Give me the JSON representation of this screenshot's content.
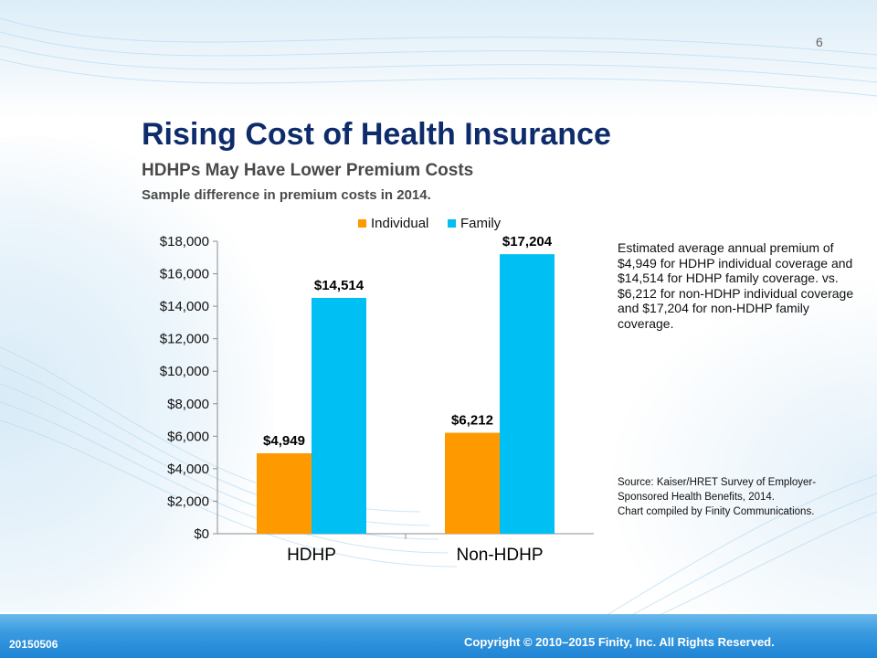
{
  "slide": {
    "page_number": "6",
    "title": "Rising Cost of Health Insurance",
    "subtitle": "HDHPs May Have Lower Premium Costs",
    "subtitle2": "Sample difference in premium costs in 2014."
  },
  "note": "Estimated average annual premium of $4,949 for HDHP individual coverage and $14,514 for HDHP family coverage. vs. $6,212 for non-HDHP individual coverage and $17,204 for non-HDHP family coverage.",
  "source": {
    "line1": "Source: Kaiser/HRET Survey of Employer-",
    "line2": "Sponsored Health Benefits, 2014.",
    "line3": "Chart compiled by Finity Communications."
  },
  "footer": {
    "code": "20150506",
    "copyright": "Copyright © 2010–2015 Finity, Inc. All Rights Reserved."
  },
  "chart_data": {
    "type": "bar",
    "categories": [
      "HDHP",
      "Non-HDHP"
    ],
    "series": [
      {
        "name": "Individual",
        "color": "#ff9900",
        "values": [
          4949,
          6212
        ],
        "labels": [
          "$4,949",
          "$6,212"
        ]
      },
      {
        "name": "Family",
        "color": "#00c0f3",
        "values": [
          14514,
          17204
        ],
        "labels": [
          "$14,514",
          "$17,204"
        ]
      }
    ],
    "ylim": [
      0,
      18000
    ],
    "yticks": [
      0,
      2000,
      4000,
      6000,
      8000,
      10000,
      12000,
      14000,
      16000,
      18000
    ],
    "ytick_labels": [
      "$0",
      "$2,000",
      "$4,000",
      "$6,000",
      "$8,000",
      "$10,000",
      "$12,000",
      "$14,000",
      "$16,000",
      "$18,000"
    ],
    "legend_position": "top",
    "grid": false
  }
}
